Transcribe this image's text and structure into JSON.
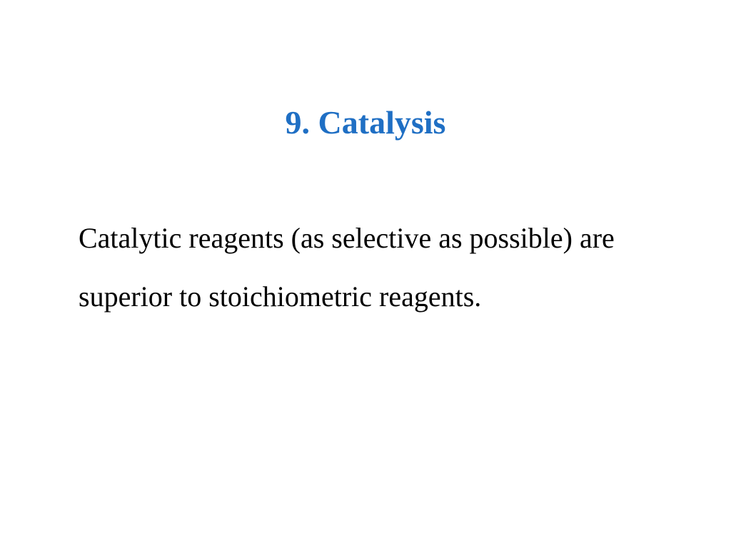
{
  "slide": {
    "title": "9. Catalysis",
    "body": "Catalytic reagents (as selective as possible) are superior to stoichiometric reagents.",
    "title_color": "#1f6fc4",
    "body_color": "#000000",
    "background_color": "#ffffff",
    "title_fontsize": 46,
    "body_fontsize": 40,
    "font_family": "Times New Roman"
  }
}
